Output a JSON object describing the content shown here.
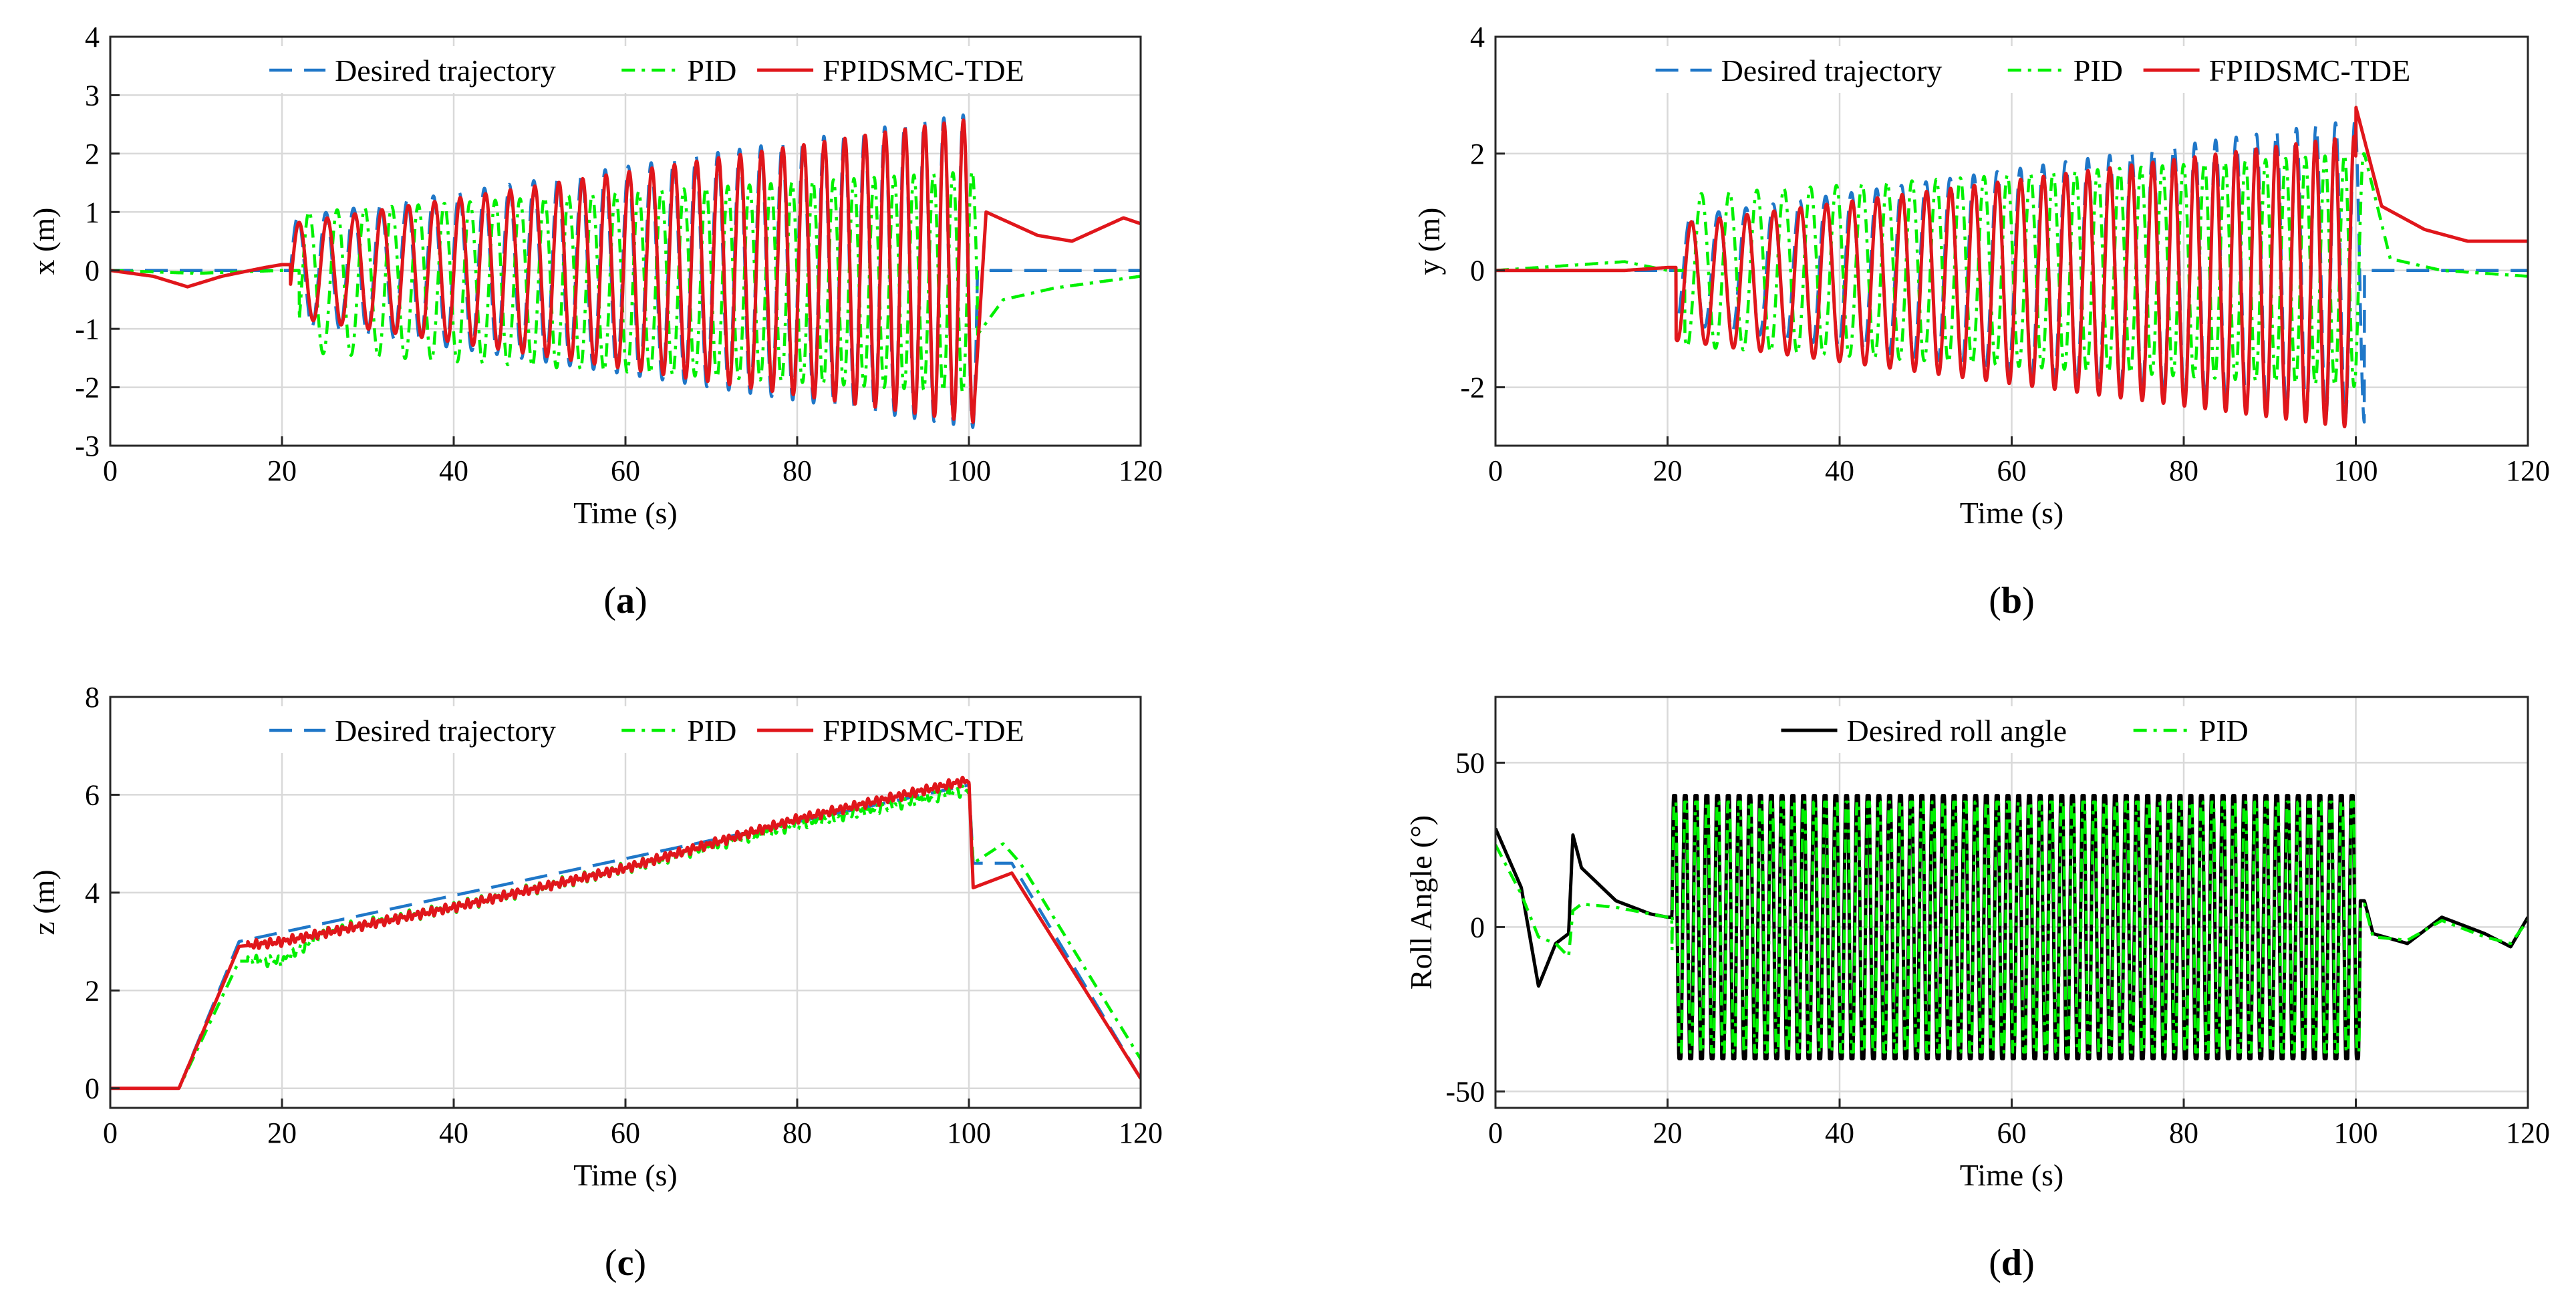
{
  "colors": {
    "desired": "#1f77c8",
    "pid": "#00f000",
    "fpidsmc": "#e0161b",
    "desired_roll": "#000000",
    "grid": "#d9d9d9",
    "axis": "#262626"
  },
  "chart_data": [
    {
      "id": "a",
      "type": "line",
      "caption": {
        "open": "(",
        "letter": "a",
        "close": ")"
      },
      "xlabel": "Time (s)",
      "ylabel": "x (m)",
      "xlim": [
        0,
        120
      ],
      "ylim": [
        -3,
        4
      ],
      "xticks": [
        "0",
        "20",
        "40",
        "60",
        "80",
        "100",
        "120"
      ],
      "yticks": [
        "-3",
        "-2",
        "-1",
        "0",
        "1",
        "2",
        "3",
        "4"
      ],
      "grid": true,
      "legend": {
        "placement": "top",
        "entries": [
          "Desired trajectory",
          "PID",
          "FPIDSMC-TDE"
        ]
      },
      "series": [
        {
          "name": "Desired trajectory",
          "style": "dashed",
          "color_key": "desired",
          "model": {
            "kind": "sweep",
            "pre": [
              [
                0,
                0
              ],
              [
                20,
                0
              ]
            ],
            "t_start": 21,
            "t_end": 101,
            "amp": [
              0.9,
              2.7
            ],
            "freq": [
              0.3,
              0.45
            ],
            "phase": 0,
            "bias": 0,
            "post": [
              [
                101,
                0
              ],
              [
                120,
                0
              ]
            ]
          }
        },
        {
          "name": "PID",
          "style": "dashdot",
          "color_key": "pid",
          "model": {
            "kind": "sweep",
            "pre": [
              [
                0,
                0
              ],
              [
                10,
                -0.05
              ],
              [
                20,
                0
              ]
            ],
            "t_start": 22,
            "t_end": 101,
            "amp": [
              1.2,
              1.9
            ],
            "freq": [
              0.3,
              0.45
            ],
            "phase": -0.6,
            "bias": -0.2,
            "post": [
              [
                101,
                -1.1
              ],
              [
                104,
                -0.5
              ],
              [
                110,
                -0.3
              ],
              [
                120,
                -0.1
              ]
            ]
          }
        },
        {
          "name": "FPIDSMC-TDE",
          "style": "solid",
          "color_key": "fpidsmc",
          "model": {
            "kind": "sweep",
            "pre": [
              [
                0,
                0
              ],
              [
                5,
                -0.1
              ],
              [
                9,
                -0.28
              ],
              [
                13,
                -0.1
              ],
              [
                18,
                0.05
              ],
              [
                20,
                0.1
              ]
            ],
            "t_start": 21,
            "t_end": 100.5,
            "amp": [
              0.8,
              2.6
            ],
            "freq": [
              0.3,
              0.45
            ],
            "phase": -0.3,
            "bias": 0,
            "post": [
              [
                100.5,
                -2.6
              ],
              [
                102,
                1.0
              ],
              [
                108,
                0.6
              ],
              [
                112,
                0.5
              ],
              [
                118,
                0.9
              ],
              [
                120,
                0.8
              ]
            ]
          }
        }
      ]
    },
    {
      "id": "b",
      "type": "line",
      "caption": {
        "open": "(",
        "letter": "b",
        "close": ")"
      },
      "xlabel": "Time (s)",
      "ylabel": "y (m)",
      "xlim": [
        0,
        120
      ],
      "ylim": [
        -3,
        4
      ],
      "xticks": [
        "0",
        "20",
        "40",
        "60",
        "80",
        "100",
        "120"
      ],
      "yticks": [
        "-2",
        "0",
        "2",
        "4"
      ],
      "grid": true,
      "legend": {
        "placement": "top",
        "entries": [
          "Desired trajectory",
          "PID",
          "FPIDSMC-TDE"
        ]
      },
      "series": [
        {
          "name": "Desired trajectory",
          "style": "dashed",
          "color_key": "desired",
          "model": {
            "kind": "sweep",
            "pre": [
              [
                0,
                0
              ],
              [
                20,
                0
              ]
            ],
            "t_start": 21,
            "t_end": 101,
            "amp": [
              0.9,
              2.6
            ],
            "freq": [
              0.3,
              0.45
            ],
            "phase": -1.57,
            "bias": 0,
            "post": [
              [
                101,
                0
              ],
              [
                110,
                0
              ],
              [
                120,
                0
              ]
            ]
          }
        },
        {
          "name": "PID",
          "style": "dashdot",
          "color_key": "pid",
          "model": {
            "kind": "sweep",
            "pre": [
              [
                0,
                0
              ],
              [
                10,
                0.1
              ],
              [
                15,
                0.15
              ],
              [
                20,
                0
              ]
            ],
            "t_start": 22,
            "t_end": 101,
            "amp": [
              1.3,
              2.0
            ],
            "freq": [
              0.3,
              0.45
            ],
            "phase": -2.1,
            "bias": 0,
            "post": [
              [
                101,
                2.0
              ],
              [
                104,
                0.2
              ],
              [
                110,
                0
              ],
              [
                120,
                -0.1
              ]
            ]
          }
        },
        {
          "name": "FPIDSMC-TDE",
          "style": "solid",
          "color_key": "fpidsmc",
          "model": {
            "kind": "sweep",
            "pre": [
              [
                0,
                0
              ],
              [
                15,
                0
              ],
              [
                20,
                0.05
              ]
            ],
            "t_start": 21,
            "t_end": 100,
            "amp": [
              1.0,
              2.5
            ],
            "freq": [
              0.3,
              0.45
            ],
            "phase": -1.8,
            "bias": -0.2,
            "post": [
              [
                100,
                2.8
              ],
              [
                103,
                1.1
              ],
              [
                108,
                0.7
              ],
              [
                113,
                0.5
              ],
              [
                120,
                0.5
              ]
            ]
          }
        }
      ]
    },
    {
      "id": "c",
      "type": "line",
      "caption": {
        "open": "(",
        "letter": "c",
        "close": ")"
      },
      "xlabel": "Time (s)",
      "ylabel": "z (m)",
      "xlim": [
        0,
        120
      ],
      "ylim": [
        -0.4,
        8
      ],
      "xticks": [
        "0",
        "20",
        "40",
        "60",
        "80",
        "100",
        "120"
      ],
      "yticks": [
        "0",
        "2",
        "4",
        "6",
        "8"
      ],
      "grid": true,
      "legend": {
        "placement": "top",
        "entries": [
          "Desired trajectory",
          "PID",
          "FPIDSMC-TDE"
        ]
      },
      "series": [
        {
          "name": "Desired trajectory",
          "style": "dashed",
          "color_key": "desired",
          "model": {
            "kind": "points",
            "points": [
              [
                0,
                0
              ],
              [
                8,
                0
              ],
              [
                15,
                3.0
              ],
              [
                100,
                6.2
              ],
              [
                100.5,
                4.6
              ],
              [
                105,
                4.6
              ],
              [
                120,
                0.2
              ]
            ]
          }
        },
        {
          "name": "PID",
          "style": "dashdot",
          "color_key": "pid",
          "model": {
            "kind": "points",
            "noise": 0.12,
            "points": [
              [
                0,
                0
              ],
              [
                8,
                0
              ],
              [
                15,
                2.6
              ],
              [
                20,
                2.6
              ],
              [
                25,
                3.2
              ],
              [
                40,
                3.7
              ],
              [
                60,
                4.5
              ],
              [
                80,
                5.4
              ],
              [
                100,
                6.1
              ],
              [
                100.5,
                4.6
              ],
              [
                104,
                5.0
              ],
              [
                106,
                4.6
              ],
              [
                120,
                0.6
              ]
            ]
          }
        },
        {
          "name": "FPIDSMC-TDE",
          "style": "solid",
          "color_key": "fpidsmc",
          "model": {
            "kind": "points",
            "noise": 0.1,
            "points": [
              [
                0,
                0
              ],
              [
                8,
                0
              ],
              [
                15,
                2.9
              ],
              [
                20,
                3.0
              ],
              [
                40,
                3.7
              ],
              [
                60,
                4.5
              ],
              [
                80,
                5.5
              ],
              [
                100,
                6.3
              ],
              [
                100.5,
                4.1
              ],
              [
                105,
                4.4
              ],
              [
                120,
                0.2
              ]
            ]
          }
        }
      ]
    },
    {
      "id": "d",
      "type": "line",
      "caption": {
        "open": "(",
        "letter": "d",
        "close": ")"
      },
      "xlabel": "Time (s)",
      "ylabel": "Roll Angle (°)",
      "xlim": [
        0,
        120
      ],
      "ylim": [
        -55,
        70
      ],
      "xticks": [
        "0",
        "20",
        "40",
        "60",
        "80",
        "100",
        "120"
      ],
      "yticks": [
        "-50",
        "0",
        "50"
      ],
      "grid": true,
      "legend": {
        "placement": "top",
        "entries": [
          "Desired roll angle",
          "PID"
        ]
      },
      "series": [
        {
          "name": "Desired roll angle",
          "style": "solid",
          "color_key": "desired_roll",
          "model": {
            "kind": "roll",
            "pre": [
              [
                0,
                30
              ],
              [
                3,
                12
              ],
              [
                5,
                -18
              ],
              [
                7,
                -5
              ],
              [
                8.5,
                -2
              ],
              [
                9,
                28
              ],
              [
                10,
                18
              ],
              [
                14,
                8
              ],
              [
                18,
                4
              ],
              [
                20,
                3
              ]
            ],
            "t_start": 20.5,
            "t_end": 100.5,
            "amp": 40,
            "freq": 0.8,
            "phase": 0,
            "post": [
              [
                101,
                8
              ],
              [
                102,
                -2
              ],
              [
                106,
                -5
              ],
              [
                110,
                3
              ],
              [
                115,
                -2
              ],
              [
                118,
                -6
              ],
              [
                120,
                3
              ]
            ]
          }
        },
        {
          "name": "PID",
          "style": "dashdot",
          "color_key": "pid",
          "model": {
            "kind": "roll",
            "pre": [
              [
                0,
                25
              ],
              [
                3,
                10
              ],
              [
                5,
                -3
              ],
              [
                7,
                -5
              ],
              [
                8.5,
                -9
              ],
              [
                9,
                5
              ],
              [
                10,
                7
              ],
              [
                14,
                6
              ],
              [
                18,
                4
              ],
              [
                20,
                3
              ]
            ],
            "t_start": 20.5,
            "t_end": 100.5,
            "amp": 38,
            "freq": 0.8,
            "phase": -0.25,
            "post": [
              [
                101,
                7
              ],
              [
                102,
                -3
              ],
              [
                106,
                -4
              ],
              [
                110,
                2
              ],
              [
                115,
                -3
              ],
              [
                118,
                -5
              ],
              [
                120,
                2
              ]
            ]
          }
        }
      ]
    }
  ]
}
